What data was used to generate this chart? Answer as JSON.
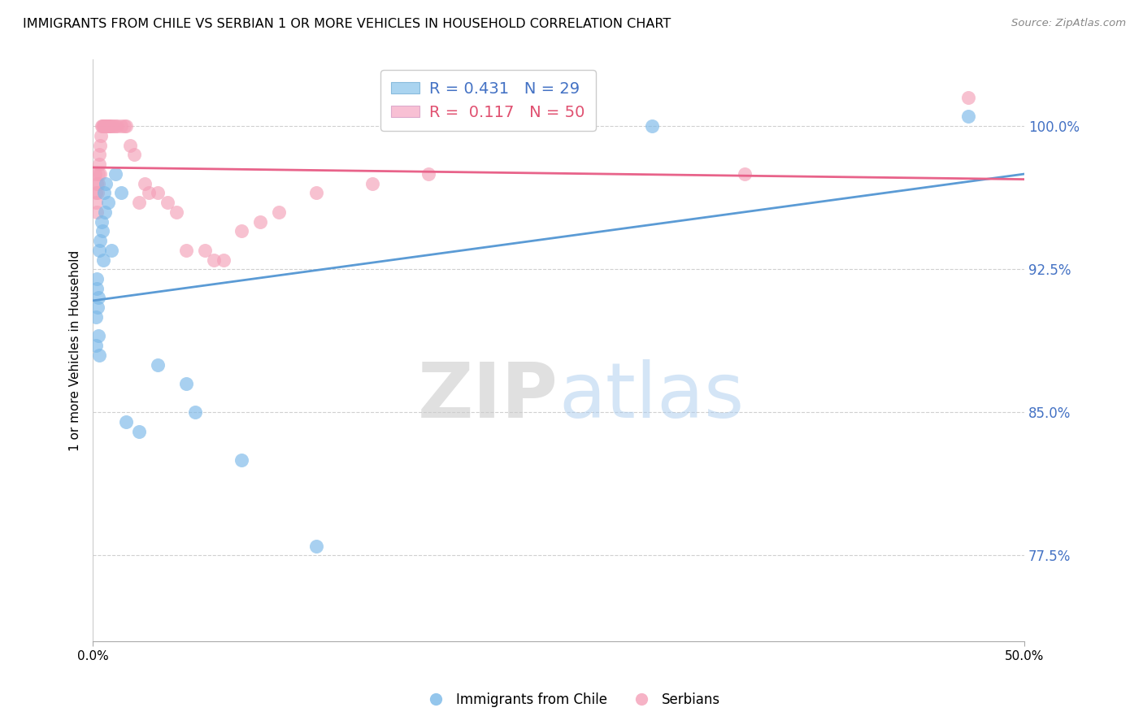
{
  "title": "IMMIGRANTS FROM CHILE VS SERBIAN 1 OR MORE VEHICLES IN HOUSEHOLD CORRELATION CHART",
  "source": "Source: ZipAtlas.com",
  "ylabel": "1 or more Vehicles in Household",
  "y_ticks": [
    77.5,
    85.0,
    92.5,
    100.0
  ],
  "y_tick_labels": [
    "77.5%",
    "85.0%",
    "92.5%",
    "100.0%"
  ],
  "xlim": [
    0.0,
    50.0
  ],
  "ylim": [
    73.0,
    103.5
  ],
  "legend_labels": [
    "Immigrants from Chile",
    "Serbians"
  ],
  "R_chile": 0.431,
  "N_chile": 29,
  "R_serbian": 0.117,
  "N_serbian": 50,
  "blue_color": "#7ab8e8",
  "pink_color": "#f4a0b8",
  "blue_line_color": "#5b9bd5",
  "pink_line_color": "#e8638a",
  "chile_x": [
    0.15,
    0.18,
    0.2,
    0.22,
    0.25,
    0.28,
    0.3,
    0.32,
    0.35,
    0.4,
    0.45,
    0.5,
    0.55,
    0.6,
    0.65,
    0.7,
    0.8,
    1.0,
    1.2,
    1.5,
    1.8,
    2.5,
    3.5,
    5.0,
    5.5,
    8.0,
    12.0,
    30.0,
    47.0
  ],
  "chile_y": [
    90.0,
    88.5,
    91.5,
    92.0,
    90.5,
    89.0,
    91.0,
    88.0,
    93.5,
    94.0,
    95.0,
    94.5,
    93.0,
    96.5,
    95.5,
    97.0,
    96.0,
    93.5,
    97.5,
    96.5,
    84.5,
    84.0,
    87.5,
    86.5,
    85.0,
    82.5,
    78.0,
    100.0,
    100.5
  ],
  "serbian_x": [
    0.12,
    0.15,
    0.18,
    0.2,
    0.22,
    0.25,
    0.28,
    0.3,
    0.32,
    0.35,
    0.38,
    0.4,
    0.42,
    0.45,
    0.5,
    0.55,
    0.6,
    0.65,
    0.7,
    0.75,
    0.8,
    0.85,
    0.9,
    1.0,
    1.1,
    1.2,
    1.3,
    1.5,
    1.7,
    1.8,
    2.0,
    2.2,
    2.5,
    2.8,
    3.0,
    3.5,
    4.0,
    4.5,
    5.0,
    6.0,
    6.5,
    7.0,
    8.0,
    9.0,
    10.0,
    12.0,
    15.0,
    18.0,
    35.0,
    47.0
  ],
  "serbian_y": [
    97.5,
    96.5,
    96.0,
    97.0,
    95.5,
    96.5,
    97.5,
    97.0,
    98.0,
    98.5,
    97.5,
    99.0,
    99.5,
    100.0,
    100.0,
    100.0,
    100.0,
    100.0,
    100.0,
    100.0,
    100.0,
    100.0,
    100.0,
    100.0,
    100.0,
    100.0,
    100.0,
    100.0,
    100.0,
    100.0,
    99.0,
    98.5,
    96.0,
    97.0,
    96.5,
    96.5,
    96.0,
    95.5,
    93.5,
    93.5,
    93.0,
    93.0,
    94.5,
    95.0,
    95.5,
    96.5,
    97.0,
    97.5,
    97.5,
    101.5
  ],
  "watermark_zip": "ZIP",
  "watermark_atlas": "atlas",
  "background_color": "#ffffff",
  "grid_color": "#d0d0d0"
}
